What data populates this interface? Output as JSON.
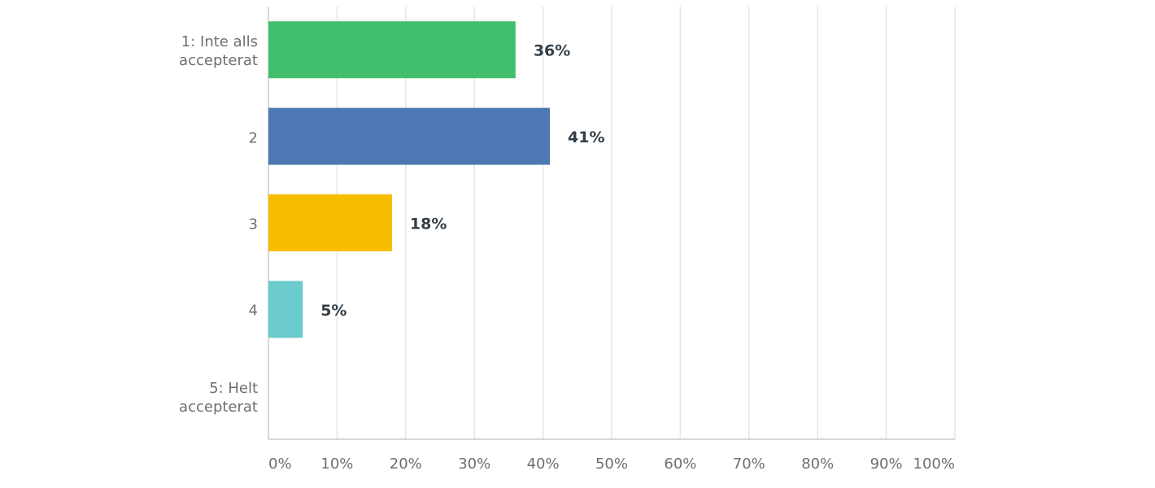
{
  "chart_data": {
    "type": "hbar",
    "categories": [
      "1: Inte alls\naccepterat",
      "2",
      "3",
      "4",
      "5: Helt\naccepterat"
    ],
    "values": [
      36,
      41,
      18,
      5,
      0
    ],
    "value_labels": [
      "36%",
      "41%",
      "18%",
      "5%",
      null
    ],
    "colors": [
      "#42bf6d",
      "#4d78b4",
      "#f7be00",
      "#6ccbcc",
      "#9ea3a6"
    ],
    "xlim": [
      0,
      100
    ],
    "xticks": [
      {
        "value": 0,
        "label": "0%"
      },
      {
        "value": 10,
        "label": "10%"
      },
      {
        "value": 20,
        "label": "20%"
      },
      {
        "value": 30,
        "label": "30%"
      },
      {
        "value": 40,
        "label": "40%"
      },
      {
        "value": 50,
        "label": "50%"
      },
      {
        "value": 60,
        "label": "60%"
      },
      {
        "value": 70,
        "label": "70%"
      },
      {
        "value": 80,
        "label": "80%"
      },
      {
        "value": 90,
        "label": "90%"
      },
      {
        "value": 100,
        "label": "100%"
      }
    ],
    "grid": true
  }
}
